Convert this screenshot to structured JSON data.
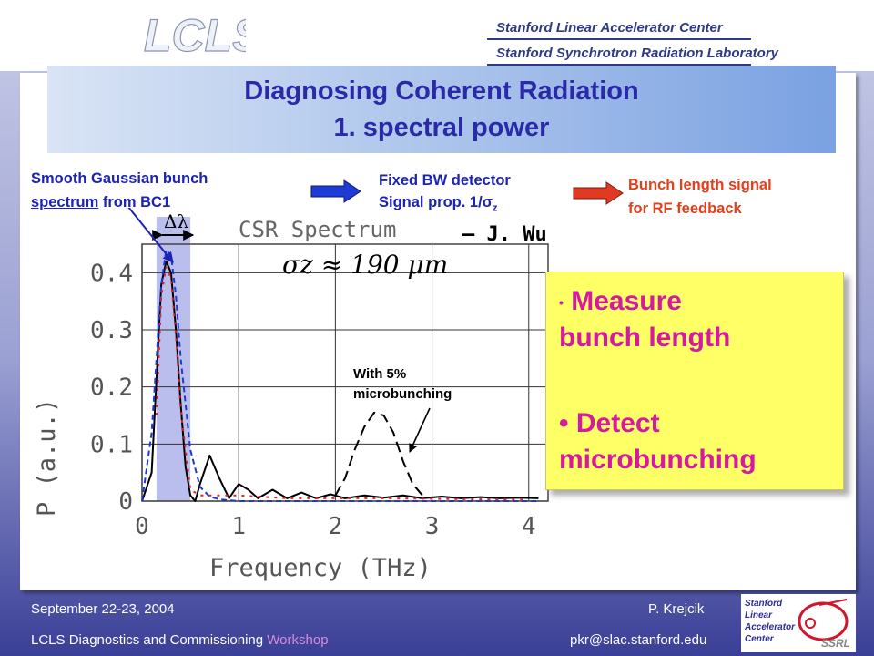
{
  "header": {
    "logo_text": "LCLS",
    "lab_line_1": "Stanford Linear Accelerator Center",
    "lab_line_2": "Stanford Synchrotron Radiation Laboratory"
  },
  "title": {
    "line1": "Diagnosing Coherent Radiation",
    "line2": "1. spectral power"
  },
  "notes": {
    "gaussian_line1": "Smooth Gaussian bunch",
    "gaussian_underlined": "spectrum",
    "gaussian_rest": " from  BC1",
    "detector_line1": "Fixed BW detector",
    "detector_line2_prefix": "Signal prop. 1/",
    "detector_line2_symbol": "σ",
    "detector_line2_sub": "z",
    "signal_line1": "Bunch length signal",
    "signal_line2": "for RF feedback",
    "microbunch_line1": "With 5%",
    "microbunch_line2": "microbunching"
  },
  "callout": {
    "bullet1_line1": "Measure",
    "bullet1_line2": "bunch length",
    "bullet2_line1": "Detect",
    "bullet2_line2": "microbunching"
  },
  "chart_data": {
    "type": "line",
    "title": "CSR Spectrum",
    "author": "– J. Wu",
    "annotation": "σz ≈ 190 μm",
    "delta_label": "Δλ",
    "xlabel": "Frequency (THz)",
    "ylabel": "P (a.u.)",
    "xlim": [
      0,
      4.2
    ],
    "ylim": [
      0,
      0.45
    ],
    "xticks": [
      "0",
      "1",
      "2",
      "3",
      "4"
    ],
    "yticks": [
      "0",
      "0.1",
      "0.2",
      "0.3",
      "0.4"
    ],
    "grid": true,
    "series": [
      {
        "style": "black-solid",
        "x": [
          0.0,
          0.1,
          0.2,
          0.25,
          0.3,
          0.35,
          0.4,
          0.45,
          0.5,
          0.55,
          0.6,
          0.7,
          0.8,
          0.9,
          1.0,
          1.1,
          1.2,
          1.35,
          1.5,
          1.65,
          1.8,
          1.95,
          2.1,
          2.3,
          2.5,
          2.7,
          2.9,
          3.1,
          3.3,
          3.5,
          3.7,
          3.9,
          4.1
        ],
        "y": [
          0.0,
          0.05,
          0.38,
          0.42,
          0.4,
          0.3,
          0.17,
          0.06,
          0.01,
          0.0,
          0.03,
          0.08,
          0.04,
          0.005,
          0.03,
          0.02,
          0.005,
          0.02,
          0.005,
          0.015,
          0.005,
          0.012,
          0.005,
          0.01,
          0.006,
          0.01,
          0.005,
          0.008,
          0.005,
          0.007,
          0.005,
          0.006,
          0.005
        ]
      },
      {
        "style": "blue-dashed",
        "x": [
          0.0,
          0.1,
          0.2,
          0.25,
          0.3,
          0.35,
          0.4,
          0.5,
          0.6,
          0.7,
          0.8,
          1.0,
          2.0,
          3.0,
          4.1
        ],
        "y": [
          0.0,
          0.12,
          0.38,
          0.44,
          0.43,
          0.36,
          0.25,
          0.09,
          0.025,
          0.008,
          0.003,
          0.0,
          0.0,
          0.0,
          0.0
        ]
      },
      {
        "style": "red-dashed",
        "x": [
          0.15,
          0.2,
          0.25,
          0.3,
          0.35,
          0.4,
          0.5,
          0.6,
          0.8,
          1.0,
          1.5,
          2.0,
          2.5,
          3.0,
          3.5,
          4.0
        ],
        "y": [
          0.15,
          0.36,
          0.41,
          0.39,
          0.29,
          0.16,
          0.02,
          0.01,
          0.01,
          0.01,
          0.005,
          0.005,
          0.005,
          0.004,
          0.003,
          0.003
        ]
      },
      {
        "style": "black-dashed-microbunching",
        "x": [
          2.0,
          2.1,
          2.2,
          2.3,
          2.4,
          2.5,
          2.6,
          2.7,
          2.8,
          2.9
        ],
        "y": [
          0.01,
          0.04,
          0.09,
          0.13,
          0.155,
          0.15,
          0.12,
          0.07,
          0.03,
          0.01
        ]
      }
    ]
  },
  "footer": {
    "date": "September 22-23, 2004",
    "author": "P. Krejcik",
    "workshop_prefix": "LCLS Diagnostics and Commissioning ",
    "workshop_word": "Workshop",
    "email": "pkr@slac.stanford.edu",
    "logo_lines": [
      "Stanford",
      "Linear",
      "Accelerator",
      "Center"
    ],
    "ssrl_text": "SSRL"
  },
  "colors": {
    "title_blue": "#2a2aa8",
    "note_blue": "#1c23b5",
    "note_red": "#e2401a",
    "callout_bg": "#ffff66",
    "callout_text": "#d41aa0",
    "arrow_blue": "#1f3bd6",
    "arrow_red": "#e23a22"
  }
}
